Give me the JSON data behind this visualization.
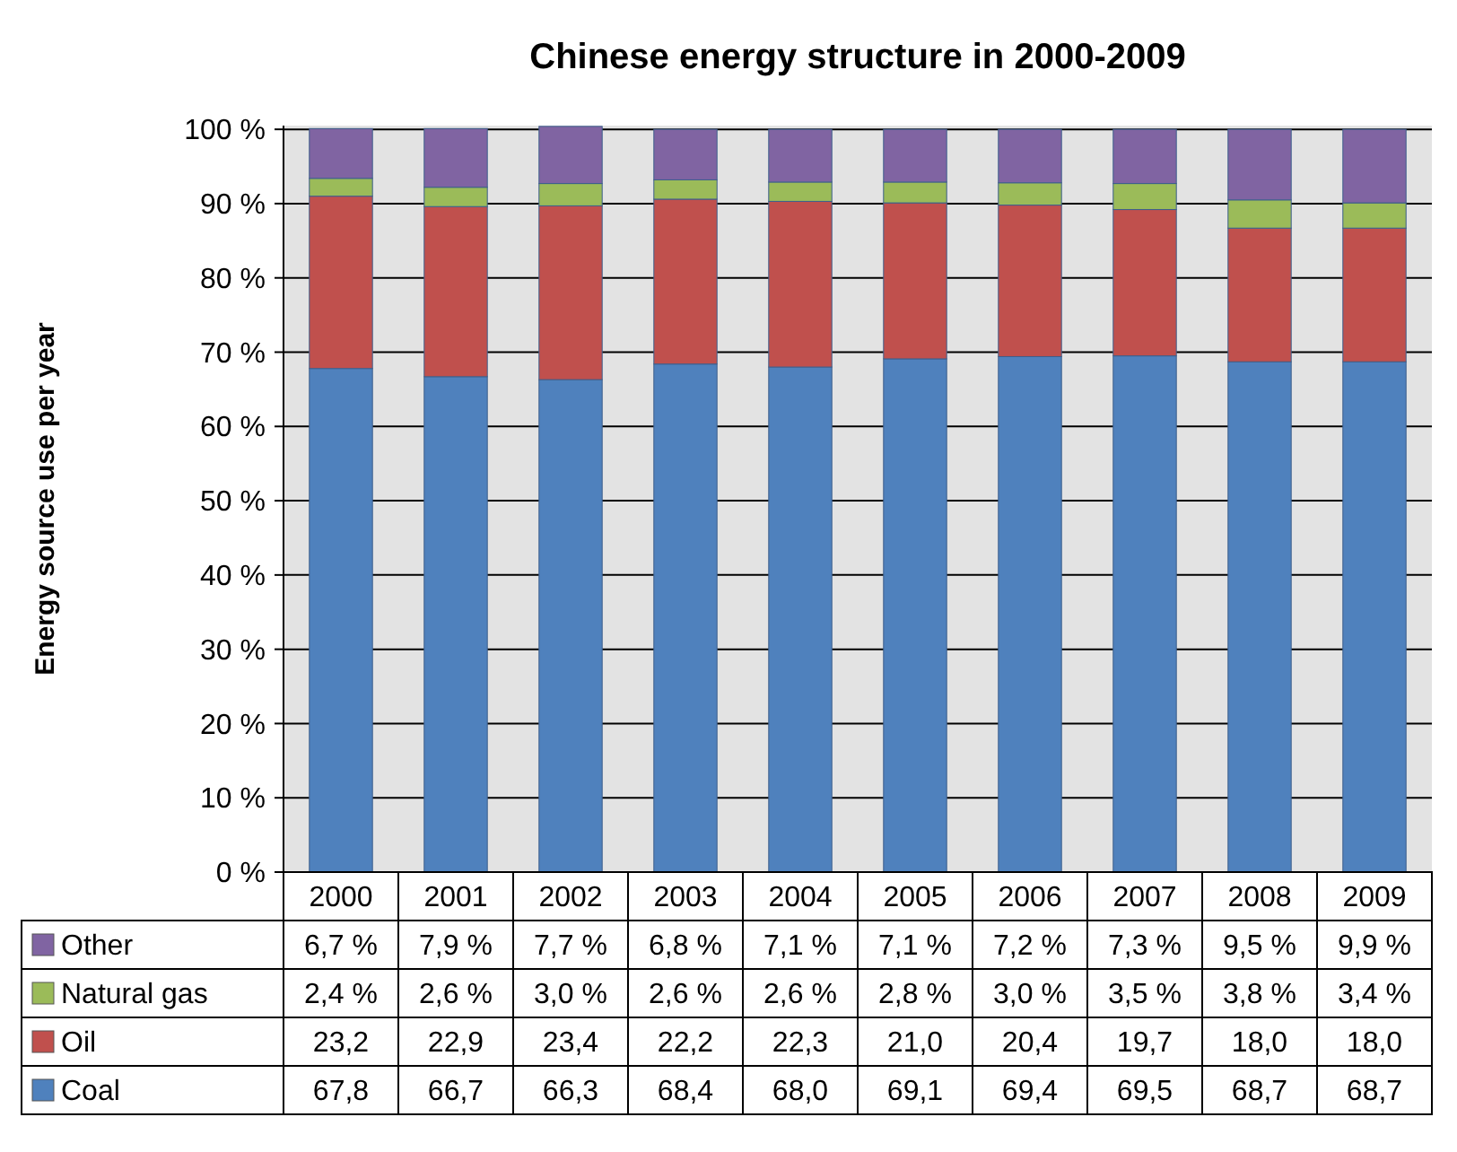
{
  "chart_data": {
    "type": "bar",
    "title": "Chinese energy structure in 2000-2009",
    "ylabel": "Energy source use per year",
    "stacked": true,
    "categories": [
      "2000",
      "2001",
      "2002",
      "2003",
      "2004",
      "2005",
      "2006",
      "2007",
      "2008",
      "2009"
    ],
    "series": [
      {
        "name": "Coal",
        "color": "#4f81bd",
        "values": [
          67.8,
          66.7,
          66.3,
          68.4,
          68.0,
          69.1,
          69.4,
          69.5,
          68.7,
          68.7
        ],
        "value_labels": [
          "67,8",
          "66,7",
          "66,3",
          "68,4",
          "68,0",
          "69,1",
          "69,4",
          "69,5",
          "68,7",
          "68,7"
        ]
      },
      {
        "name": "Oil",
        "color": "#c0504d",
        "values": [
          23.2,
          22.9,
          23.4,
          22.2,
          22.3,
          21.0,
          20.4,
          19.7,
          18.0,
          18.0
        ],
        "value_labels": [
          "23,2",
          "22,9",
          "23,4",
          "22,2",
          "22,3",
          "21,0",
          "20,4",
          "19,7",
          "18,0",
          "18,0"
        ]
      },
      {
        "name": "Natural gas",
        "color": "#9bbb59",
        "values": [
          2.4,
          2.6,
          3.0,
          2.6,
          2.6,
          2.8,
          3.0,
          3.5,
          3.8,
          3.4
        ],
        "value_labels": [
          "2,4 %",
          "2,6 %",
          "3,0 %",
          "2,6 %",
          "2,6 %",
          "2,8 %",
          "3,0 %",
          "3,5 %",
          "3,8 %",
          "3,4 %"
        ]
      },
      {
        "name": "Other",
        "color": "#8064a2",
        "values": [
          6.7,
          7.9,
          7.7,
          6.8,
          7.1,
          7.1,
          7.2,
          7.3,
          9.5,
          9.9
        ],
        "value_labels": [
          "6,7 %",
          "7,9 %",
          "7,7 %",
          "6,8 %",
          "7,1 %",
          "7,1 %",
          "7,2 %",
          "7,3 %",
          "9,5 %",
          "9,9 %"
        ]
      }
    ],
    "ylim": [
      0,
      100.5
    ],
    "yticks": [
      {
        "value": 0,
        "label": "0 %"
      },
      {
        "value": 10,
        "label": "10 %"
      },
      {
        "value": 20,
        "label": "20 %"
      },
      {
        "value": 30,
        "label": "30 %"
      },
      {
        "value": 40,
        "label": "40 %"
      },
      {
        "value": 50,
        "label": "50 %"
      },
      {
        "value": 60,
        "label": "60 %"
      },
      {
        "value": 70,
        "label": "70 %"
      },
      {
        "value": 80,
        "label": "80 %"
      },
      {
        "value": 90,
        "label": "90 %"
      },
      {
        "value": 100,
        "label": "100 %"
      }
    ],
    "grid": "y",
    "legend": "bottom"
  }
}
